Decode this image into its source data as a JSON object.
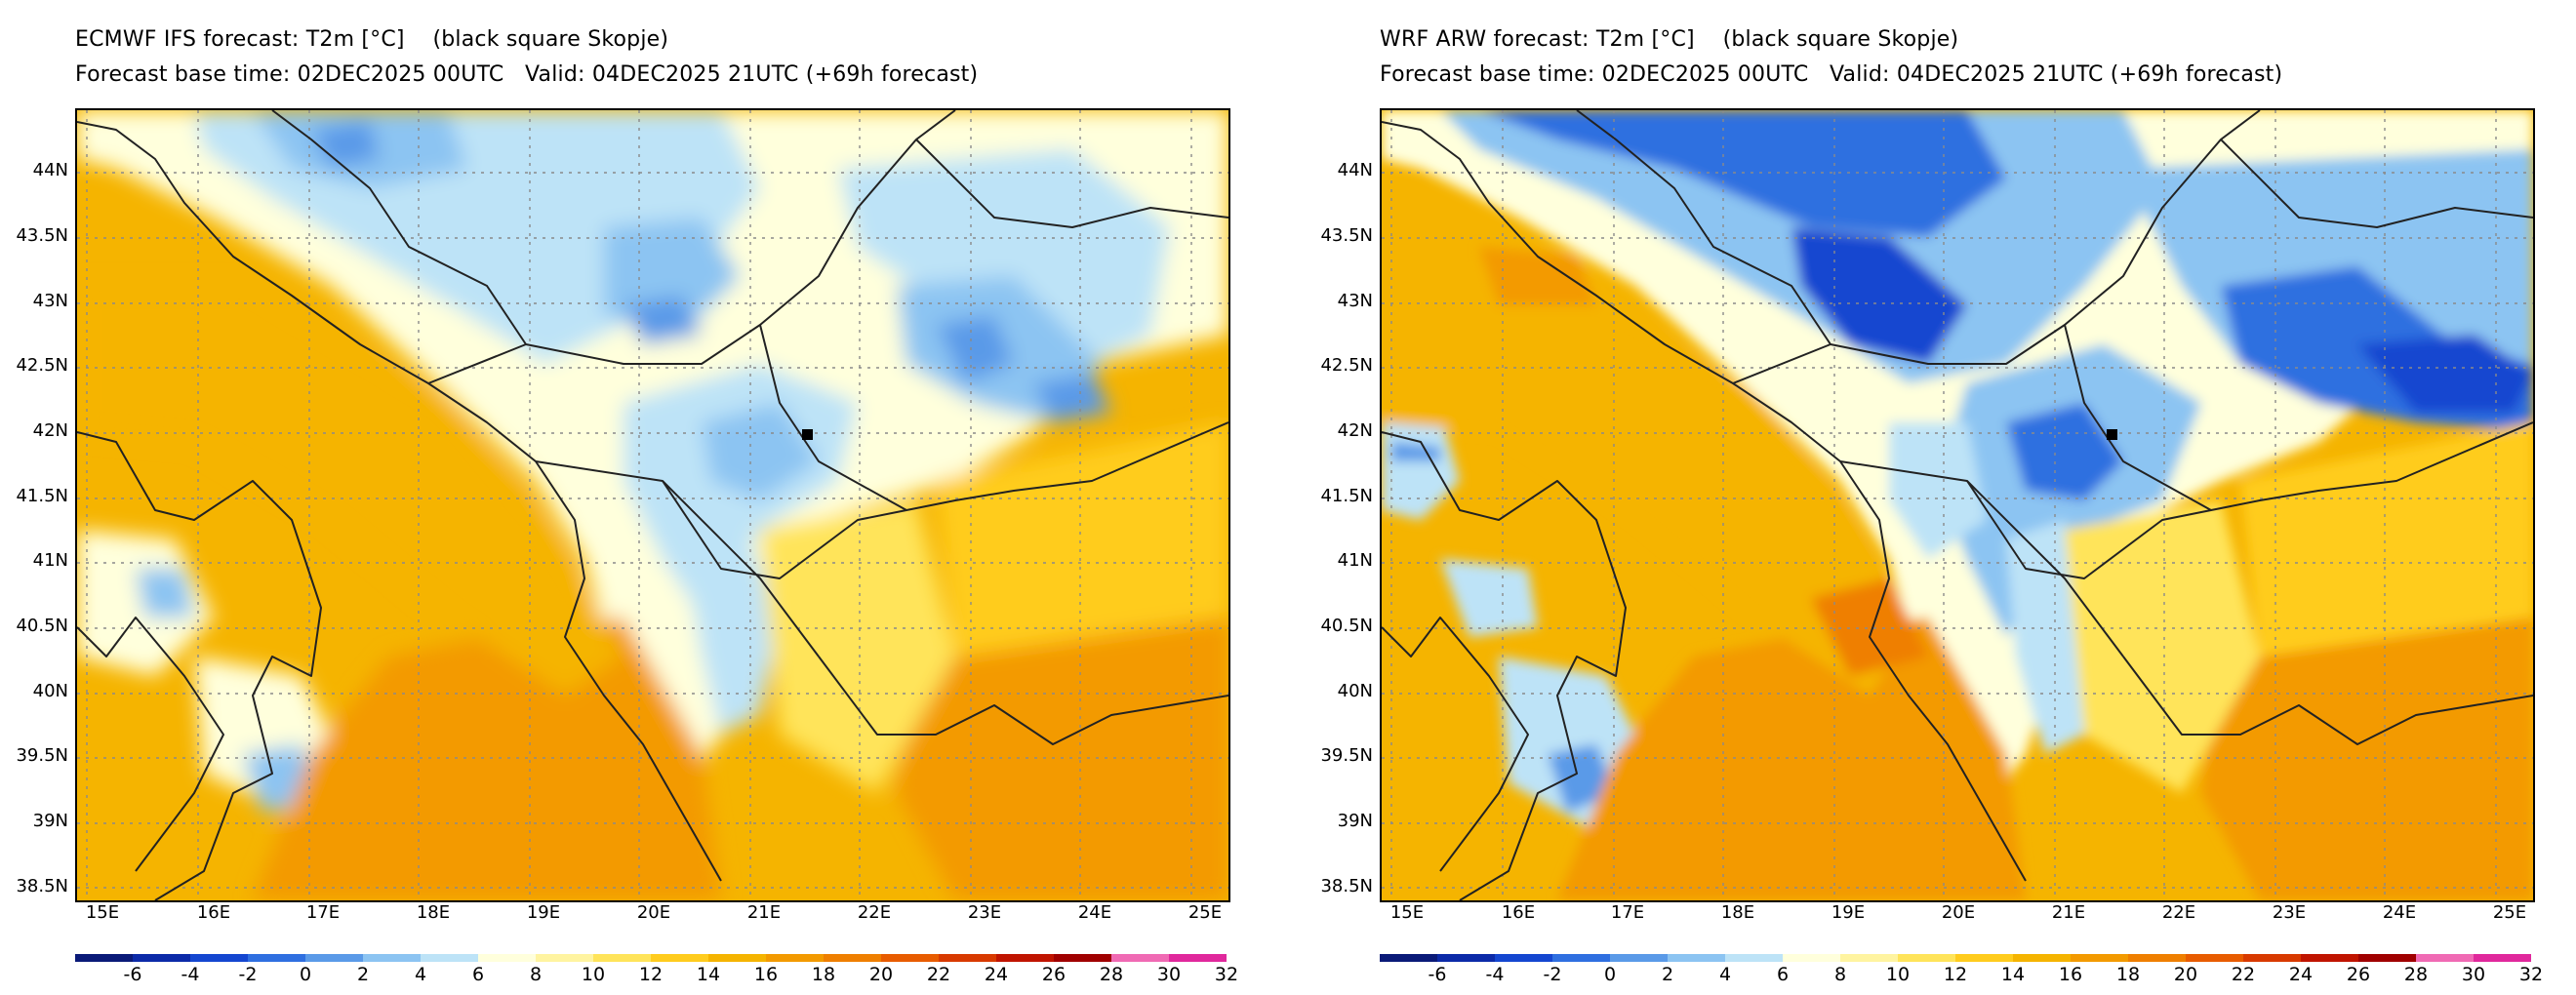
{
  "left_panel": {
    "title": "ECMWF IFS forecast: T2m [°C]    (black square Skopje)",
    "subtitle": "Forecast base time: 02DEC2025 00UTC   Valid: 04DEC2025 21UTC (+69h forecast)"
  },
  "right_panel": {
    "title": "WRF ARW forecast: T2m [°C]    (black square Skopje)",
    "subtitle": "Forecast base time: 02DEC2025 00UTC   Valid: 04DEC2025 21UTC (+69h forecast)"
  },
  "lat_labels": [
    "44N",
    "43.5N",
    "43N",
    "42.5N",
    "42N",
    "41.5N",
    "41N",
    "40.5N",
    "40N",
    "39.5N",
    "39N",
    "38.5N"
  ],
  "lon_labels": [
    "15E",
    "16E",
    "17E",
    "18E",
    "19E",
    "20E",
    "21E",
    "22E",
    "23E",
    "24E",
    "25E"
  ],
  "colorbar": {
    "ticks": [
      "-6",
      "-4",
      "-2",
      "0",
      "2",
      "4",
      "6",
      "8",
      "10",
      "12",
      "14",
      "16",
      "18",
      "20",
      "22",
      "24",
      "26",
      "28",
      "30",
      "32"
    ],
    "colors": [
      "#0a1a78",
      "#0c2aa8",
      "#1446d0",
      "#2f6fe0",
      "#5a9ae8",
      "#8cc4f2",
      "#bde3f7",
      "#ffffdc",
      "#fff4a0",
      "#ffe45a",
      "#ffcc1e",
      "#f5b400",
      "#f39a00",
      "#ef7f00",
      "#e85c00",
      "#d83a00",
      "#c01400",
      "#a00000",
      "#f06ab4",
      "#e0289c"
    ]
  },
  "station_label": "Skopje"
}
